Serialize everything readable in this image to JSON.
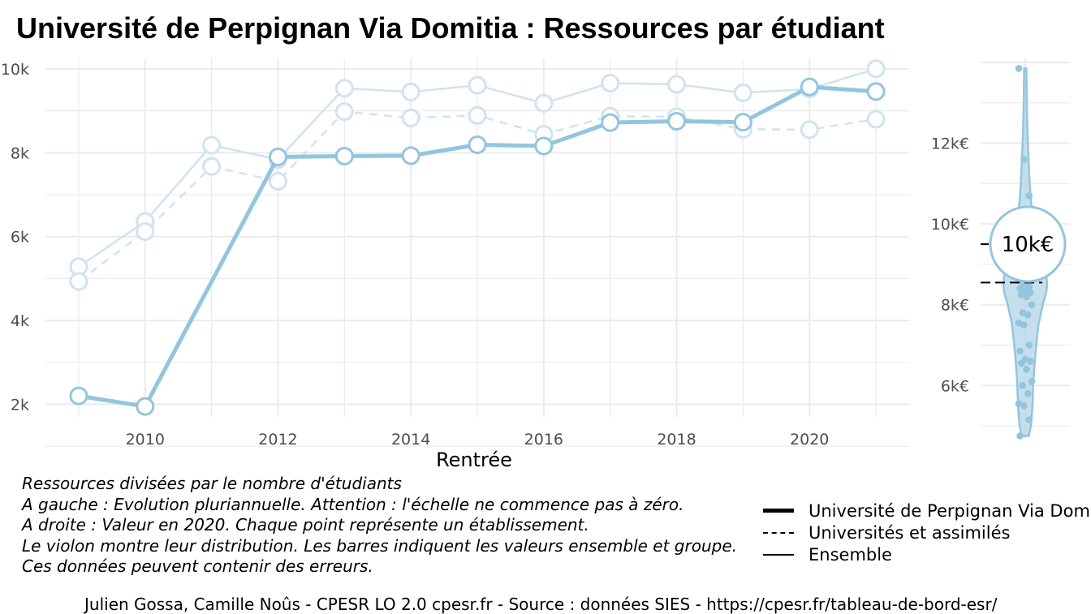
{
  "title": "Université de Perpignan Via Domitia  :  Ressources par étudiant",
  "chart_data": [
    {
      "type": "line",
      "xlabel": "Rentrée",
      "ylabel": "",
      "x": [
        2009,
        2010,
        2011,
        2012,
        2013,
        2014,
        2015,
        2016,
        2017,
        2018,
        2019,
        2020,
        2021
      ],
      "xlim": [
        2008.5,
        2021.5
      ],
      "ylim": [
        1700,
        10250
      ],
      "x_ticks": [
        2010,
        2012,
        2014,
        2016,
        2018,
        2020
      ],
      "x_tick_labels": [
        "2010",
        "2012",
        "2014",
        "2016",
        "2018",
        "2020"
      ],
      "y_ticks": [
        2000,
        4000,
        6000,
        8000,
        10000
      ],
      "y_tick_labels": [
        "2k",
        "4k",
        "6k",
        "8k",
        "10k"
      ],
      "grid": true,
      "series": [
        {
          "name": "Université de Perpignan Via Domitia",
          "style": "solid-thick",
          "values": [
            2200,
            1950,
            null,
            7900,
            7920,
            7930,
            8190,
            8160,
            8720,
            8750,
            8730,
            9570,
            9460
          ]
        },
        {
          "name": "Universités et assimilés",
          "style": "dashed",
          "values": [
            4930,
            6120,
            7670,
            7320,
            8980,
            8830,
            8890,
            8440,
            8870,
            8860,
            8560,
            8550,
            8800
          ]
        },
        {
          "name": "Ensemble",
          "style": "solid-thin",
          "values": [
            5280,
            6360,
            8180,
            7840,
            9540,
            9450,
            9610,
            9180,
            9660,
            9630,
            9430,
            9520,
            10000
          ]
        }
      ]
    },
    {
      "type": "violin",
      "ylim": [
        4700,
        14100
      ],
      "y_ticks": [
        6000,
        8000,
        10000,
        12000
      ],
      "y_tick_labels": [
        "6k€",
        "8k€",
        "10k€",
        "12k€"
      ],
      "grid": true,
      "highlight_value": 9500,
      "highlight_label": "10k€",
      "reference_lines": [
        {
          "name": "Ensemble",
          "value": 9500,
          "style": "dashed-long"
        },
        {
          "name": "Universités et assimilés",
          "value": 8550,
          "style": "dashed"
        }
      ],
      "points": [
        13850,
        11600,
        10700,
        9900,
        9600,
        9400,
        9200,
        9050,
        8900,
        8800,
        8700,
        8600,
        8520,
        8450,
        8400,
        8350,
        8300,
        8250,
        8200,
        8000,
        7800,
        7750,
        7550,
        7500,
        7000,
        6850,
        6650,
        6600,
        6550,
        6400,
        6100,
        6000,
        5800,
        5550,
        5500,
        5150,
        4750
      ],
      "density": [
        [
          4750,
          0.16
        ],
        [
          5000,
          0.26
        ],
        [
          5500,
          0.33
        ],
        [
          6000,
          0.36
        ],
        [
          6500,
          0.42
        ],
        [
          7000,
          0.5
        ],
        [
          7500,
          0.6
        ],
        [
          8000,
          0.8
        ],
        [
          8300,
          0.96
        ],
        [
          8500,
          1.0
        ],
        [
          8800,
          0.95
        ],
        [
          9100,
          0.82
        ],
        [
          9500,
          0.6
        ],
        [
          10000,
          0.4
        ],
        [
          10500,
          0.27
        ],
        [
          11000,
          0.2
        ],
        [
          11500,
          0.16
        ],
        [
          12000,
          0.12
        ],
        [
          12500,
          0.09
        ],
        [
          13000,
          0.07
        ],
        [
          13500,
          0.06
        ],
        [
          13850,
          0.05
        ]
      ]
    }
  ],
  "notes": [
    "Ressources divisées par le nombre d'étudiants",
    "A gauche : Evolution pluriannuelle. Attention : l'échelle ne commence pas à zéro.",
    "A droite : Valeur en 2020. Chaque point représente un établissement.",
    "Le violon montre leur distribution. Les barres indiquent les valeurs ensemble et groupe.",
    "Ces données peuvent contenir des erreurs."
  ],
  "legend": [
    {
      "label": "Université de Perpignan Via Domitia",
      "style": "solid-thick"
    },
    {
      "label": "Universités et assimilés",
      "style": "dashed"
    },
    {
      "label": "Ensemble",
      "style": "solid-thin"
    }
  ],
  "caption": "Julien Gossa, Camille Noûs - CPESR LO 2.0 cpesr.fr - Source : données SIES - https://cpesr.fr/tableau-de-bord-esr/",
  "colors": {
    "series": "#93c5de",
    "series_faded": "#cfe4ef",
    "grid": "#ebebeb",
    "violin_fill": "#b8d7e8",
    "violin_stroke": "#93c5de"
  }
}
